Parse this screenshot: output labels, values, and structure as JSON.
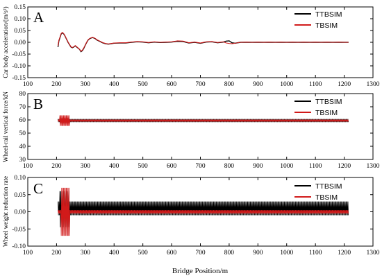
{
  "chart_data": [
    {
      "type": "line",
      "panel": "A",
      "xlabel": "",
      "ylabel": "Car body acceleration/(m/s²)",
      "xlim": [
        100,
        1300
      ],
      "ylim": [
        -0.15,
        0.15
      ],
      "x_ticks": [
        "100",
        "200",
        "300",
        "400",
        "500",
        "600",
        "700",
        "800",
        "900",
        "1000",
        "1100",
        "1200",
        "1300"
      ],
      "y_ticks": [
        "-0.15",
        "-0.10",
        "-0.05",
        "0.00",
        "0.05",
        "0.10",
        "0.15"
      ],
      "legend_position": "top-right",
      "series": [
        {
          "name": "TTBSIM",
          "color": "#000000",
          "x": [
            205,
            208,
            212,
            216,
            220,
            224,
            228,
            232,
            236,
            240,
            245,
            250,
            255,
            260,
            265,
            270,
            275,
            280,
            285,
            290,
            295,
            300,
            305,
            310,
            315,
            320,
            325,
            330,
            335,
            340,
            350,
            360,
            370,
            380,
            390,
            400,
            420,
            440,
            460,
            480,
            500,
            520,
            540,
            560,
            580,
            600,
            620,
            640,
            660,
            680,
            700,
            720,
            740,
            760,
            780,
            790,
            800,
            810,
            820,
            840,
            860,
            880,
            900,
            920,
            940,
            960,
            980,
            1000,
            1020,
            1040,
            1060,
            1080,
            1100,
            1120,
            1140,
            1160,
            1180,
            1200,
            1215
          ],
          "values": [
            -0.02,
            0.005,
            0.02,
            0.035,
            0.04,
            0.037,
            0.03,
            0.02,
            0.01,
            0.0,
            -0.01,
            -0.02,
            -0.023,
            -0.02,
            -0.015,
            -0.02,
            -0.025,
            -0.03,
            -0.04,
            -0.035,
            -0.025,
            -0.012,
            0.0,
            0.01,
            0.015,
            0.018,
            0.02,
            0.018,
            0.015,
            0.01,
            0.004,
            -0.002,
            -0.006,
            -0.008,
            -0.006,
            -0.004,
            -0.003,
            -0.003,
            0.0,
            0.002,
            0.001,
            -0.002,
            0.001,
            -0.001,
            0.0,
            0.001,
            0.004,
            0.003,
            -0.003,
            0.0,
            -0.004,
            0.001,
            0.002,
            -0.002,
            0.001,
            0.005,
            0.006,
            -0.002,
            -0.004,
            0.0,
            0.0,
            0.0,
            0.0,
            0.0,
            0.0,
            0.0,
            0.0,
            0.0,
            0.0,
            0.0,
            0.0,
            0.0,
            0.0,
            0.0,
            0.0,
            0.0,
            0.0,
            0.0,
            0.0
          ]
        },
        {
          "name": "TBSIM",
          "color": "#d11a1a",
          "x": [
            205,
            208,
            212,
            216,
            220,
            224,
            228,
            232,
            236,
            240,
            245,
            250,
            255,
            260,
            265,
            270,
            275,
            280,
            285,
            290,
            295,
            300,
            305,
            310,
            315,
            320,
            325,
            330,
            335,
            340,
            350,
            360,
            370,
            380,
            390,
            400,
            420,
            440,
            460,
            480,
            500,
            520,
            540,
            560,
            580,
            600,
            620,
            640,
            660,
            680,
            700,
            720,
            740,
            760,
            780,
            790,
            800,
            810,
            820,
            840,
            860,
            880,
            900,
            920,
            940,
            960,
            980,
            1000,
            1020,
            1040,
            1060,
            1080,
            1100,
            1120,
            1140,
            1160,
            1180,
            1200,
            1215
          ],
          "values": [
            -0.015,
            0.008,
            0.022,
            0.037,
            0.042,
            0.038,
            0.031,
            0.021,
            0.011,
            0.001,
            -0.009,
            -0.019,
            -0.022,
            -0.019,
            -0.014,
            -0.019,
            -0.024,
            -0.03,
            -0.038,
            -0.033,
            -0.023,
            -0.011,
            0.001,
            0.011,
            0.016,
            0.019,
            0.021,
            0.019,
            0.016,
            0.011,
            0.005,
            -0.001,
            -0.005,
            -0.007,
            -0.005,
            -0.003,
            -0.002,
            -0.002,
            0.001,
            0.003,
            0.002,
            -0.001,
            0.002,
            0.0,
            0.001,
            0.002,
            0.006,
            0.005,
            -0.002,
            0.001,
            -0.003,
            0.002,
            0.003,
            -0.001,
            0.002,
            -0.003,
            -0.005,
            -0.006,
            -0.004,
            0.0,
            0.001,
            0.0,
            0.001,
            0.0,
            0.001,
            0.0,
            0.001,
            0.0,
            0.001,
            0.0,
            0.001,
            0.0,
            0.001,
            0.0,
            0.001,
            0.0,
            0.001,
            0.0,
            0.0
          ]
        }
      ]
    },
    {
      "type": "line",
      "panel": "B",
      "xlabel": "",
      "ylabel": "Wheel-rail vertical force/kN",
      "xlim": [
        100,
        1300
      ],
      "ylim": [
        30,
        80
      ],
      "x_ticks": [
        "100",
        "200",
        "300",
        "400",
        "500",
        "600",
        "700",
        "800",
        "900",
        "1000",
        "1100",
        "1200",
        "1300"
      ],
      "y_ticks": [
        "30",
        "40",
        "50",
        "60",
        "70",
        "80"
      ],
      "legend_position": "top-right",
      "series": [
        {
          "name": "TTBSIM",
          "color": "#000000",
          "x_range": [
            205,
            1215
          ],
          "baseline": 59.5,
          "band_amplitude": 1.2,
          "burst": {
            "x_start": 210,
            "x_end": 245,
            "amplitude": 2.0
          }
        },
        {
          "name": "TBSIM",
          "color": "#d11a1a",
          "x_range": [
            205,
            1215
          ],
          "baseline": 59.5,
          "band_amplitude": 0.8,
          "burst": {
            "x_start": 210,
            "x_end": 245,
            "amplitude": 4.0
          }
        }
      ]
    },
    {
      "type": "line",
      "panel": "C",
      "xlabel": "Bridge Position/m",
      "ylabel": "Wheel weight reduction rate",
      "xlim": [
        100,
        1300
      ],
      "ylim": [
        -0.1,
        0.1
      ],
      "x_ticks": [
        "100",
        "200",
        "300",
        "400",
        "500",
        "600",
        "700",
        "800",
        "900",
        "1000",
        "1100",
        "1200",
        "1300"
      ],
      "y_ticks": [
        "-0.10",
        "-0.05",
        "0.00",
        "0.05",
        "0.10"
      ],
      "legend_position": "top-right",
      "series": [
        {
          "name": "TTBSIM",
          "color": "#000000",
          "x_range": [
            205,
            1215
          ],
          "band_low": -0.01,
          "band_high": 0.03,
          "burst": {
            "x_start": 210,
            "x_end": 245,
            "low": -0.045,
            "high": 0.06
          }
        },
        {
          "name": "TBSIM",
          "color": "#d11a1a",
          "x_range": [
            205,
            1215
          ],
          "band_low": -0.005,
          "band_high": 0.005,
          "burst": {
            "x_start": 215,
            "x_end": 245,
            "low": -0.07,
            "high": 0.07
          }
        }
      ]
    }
  ]
}
